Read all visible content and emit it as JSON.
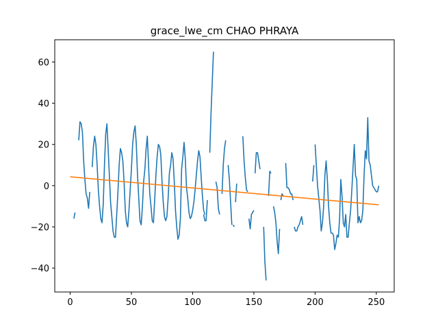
{
  "chart_data": {
    "type": "line",
    "title": "grace_lwe_cm CHAO PHRAYA",
    "xlabel": "",
    "ylabel": "",
    "xlim": [
      -12.6,
      264.6
    ],
    "ylim": [
      -51.6,
      70.8
    ],
    "xticks": [
      0,
      50,
      100,
      150,
      200,
      250
    ],
    "yticks": [
      -40,
      -20,
      0,
      20,
      40,
      60
    ],
    "xtick_labels": [
      "0",
      "50",
      "100",
      "150",
      "200",
      "250"
    ],
    "ytick_labels": [
      "−40",
      "−20",
      "0",
      "20",
      "40",
      "60"
    ],
    "grid": false,
    "legend": "none",
    "series": [
      {
        "color": "#1f77b4",
        "segments": [
          {
            "x": [
              3,
              4
            ],
            "y": [
              -16,
              -13
            ]
          },
          {
            "x": [
              7,
              8,
              9,
              10,
              11,
              12,
              13,
              14,
              15,
              16
            ],
            "y": [
              22,
              31,
              30,
              26,
              12,
              3,
              -4,
              -6,
              -11,
              -3
            ]
          },
          {
            "x": [
              18,
              19,
              20,
              21,
              22,
              23,
              24,
              25,
              26,
              27,
              28,
              29,
              30,
              31,
              32,
              33,
              34,
              35,
              36,
              37,
              38,
              39,
              40,
              41,
              42,
              43,
              44,
              45,
              46,
              47,
              48,
              49,
              50,
              51,
              52,
              53,
              54,
              55,
              56,
              57,
              58,
              59,
              60,
              61,
              62,
              63,
              64,
              65,
              66,
              67,
              68,
              69,
              70,
              71,
              72,
              73,
              74,
              75,
              76,
              77,
              78,
              79,
              80,
              81,
              82,
              83,
              84,
              85,
              86,
              87,
              88,
              89,
              90,
              91,
              92,
              93,
              94,
              95,
              96,
              97,
              98,
              99,
              100,
              101,
              102,
              103,
              104,
              105,
              106,
              107,
              108,
              109,
              110
            ],
            "y": [
              9,
              19,
              24,
              20,
              10,
              -2,
              -10,
              -16,
              -18,
              -9,
              10,
              25,
              30,
              18,
              5,
              -8,
              -15,
              -22,
              -25,
              -25,
              -14,
              -3,
              10,
              18,
              16,
              12,
              2,
              -12,
              -18,
              -20,
              -12,
              -2,
              8,
              20,
              26,
              29,
              20,
              5,
              -6,
              -17,
              -19,
              -10,
              2,
              8,
              18,
              24,
              10,
              -4,
              -10,
              -17,
              -18,
              -7,
              5,
              14,
              20,
              19,
              15,
              2,
              -8,
              -15,
              -17,
              -15,
              -6,
              6,
              10,
              16,
              13,
              2,
              -12,
              -20,
              -26,
              -24,
              -16,
              8,
              14,
              21,
              13,
              -1,
              -6,
              -13,
              -16,
              -15,
              -12,
              -8,
              -2,
              5,
              12,
              17,
              14,
              4,
              -5,
              -12,
              -14
            ]
          },
          {
            "x": [
              109,
              110,
              111,
              112
            ],
            "y": [
              -14,
              -17,
              -17,
              -7
            ]
          },
          {
            "x": [
              114,
              115,
              116,
              117
            ],
            "y": [
              16,
              35,
              50,
              65
            ]
          },
          {
            "x": [
              119,
              120,
              121,
              122
            ],
            "y": [
              2,
              -1,
              -11,
              -14
            ]
          },
          {
            "x": [
              124,
              125,
              126,
              127
            ],
            "y": [
              -4,
              10,
              18,
              22
            ]
          },
          {
            "x": [
              129,
              130,
              131,
              132
            ],
            "y": [
              10,
              3,
              -8,
              -19
            ]
          },
          {
            "x": [
              133,
              134
            ],
            "y": [
              -19,
              -20
            ]
          },
          {
            "x": [
              135,
              136
            ],
            "y": [
              -8,
              1
            ]
          },
          {
            "x": [
              141,
              142,
              143,
              144,
              145
            ],
            "y": [
              24,
              12,
              4,
              -2,
              -3
            ]
          },
          {
            "x": [
              146,
              147,
              148,
              149,
              150
            ],
            "y": [
              -16,
              -21,
              -14,
              -13,
              -12
            ]
          },
          {
            "x": [
              151,
              152,
              153,
              154,
              155
            ],
            "y": [
              6,
              16,
              16,
              12,
              8
            ]
          },
          {
            "x": [
              158,
              159,
              160
            ],
            "y": [
              -20,
              -37,
              -46
            ]
          },
          {
            "x": [
              162,
              163,
              164
            ],
            "y": [
              -5,
              7,
              6
            ]
          },
          {
            "x": [
              166,
              167,
              168,
              169,
              170,
              171
            ],
            "y": [
              -10,
              -13,
              -18,
              -27,
              -33,
              -21
            ]
          },
          {
            "x": [
              172,
              173,
              174
            ],
            "y": [
              -7,
              -4,
              -5
            ]
          },
          {
            "x": [
              176,
              177,
              178,
              179,
              180,
              181,
              182
            ],
            "y": [
              11,
              -1,
              -1,
              -2,
              -4,
              -4,
              -7
            ]
          },
          {
            "x": [
              183,
              184,
              185,
              186,
              187,
              188,
              189,
              190
            ],
            "y": [
              -20,
              -22,
              -22,
              -20,
              -19,
              -17,
              -15,
              -19
            ]
          },
          {
            "x": [
              198,
              199
            ],
            "y": [
              2,
              10
            ]
          },
          {
            "x": [
              200,
              201,
              202,
              203,
              204,
              205,
              206,
              207,
              208,
              209,
              210,
              211,
              212,
              213,
              214,
              215,
              216,
              217,
              218,
              219,
              220,
              221,
              222,
              223,
              224,
              225,
              226,
              227,
              228,
              229,
              230,
              231,
              232,
              233,
              234,
              235,
              236,
              237,
              238,
              239,
              240,
              241,
              242,
              243,
              244,
              245,
              246,
              247,
              248,
              249,
              250,
              251,
              252
            ],
            "y": [
              20,
              10,
              0,
              -6,
              -12,
              -22,
              -18,
              -10,
              5,
              12,
              3,
              -10,
              -18,
              -23,
              -23,
              -24,
              -31,
              -28,
              -24,
              -25,
              -16,
              3,
              -5,
              -18,
              -20,
              -14,
              -25,
              -25,
              -18,
              -12,
              -2,
              9,
              20,
              5,
              3,
              -18,
              -15,
              -18,
              -17,
              -12,
              5,
              17,
              13,
              33,
              12,
              10,
              5,
              0,
              -1,
              -2,
              -3,
              -3,
              0
            ]
          }
        ]
      },
      {
        "color": "#ff7f0e",
        "x": [
          0,
          252
        ],
        "y": [
          4.3,
          -9.3
        ]
      }
    ]
  }
}
